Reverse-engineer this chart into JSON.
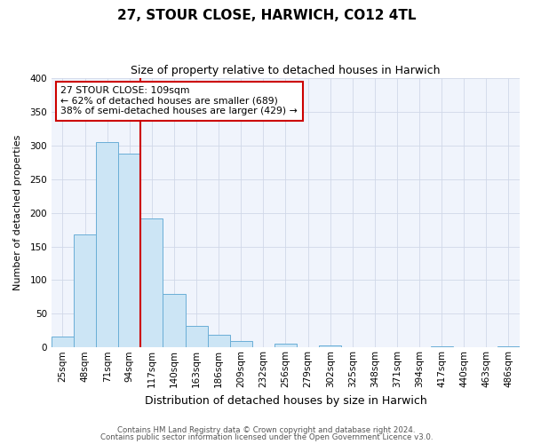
{
  "title": "27, STOUR CLOSE, HARWICH, CO12 4TL",
  "subtitle": "Size of property relative to detached houses in Harwich",
  "xlabel": "Distribution of detached houses by size in Harwich",
  "ylabel": "Number of detached properties",
  "bins": [
    "25sqm",
    "48sqm",
    "71sqm",
    "94sqm",
    "117sqm",
    "140sqm",
    "163sqm",
    "186sqm",
    "209sqm",
    "232sqm",
    "256sqm",
    "279sqm",
    "302sqm",
    "325sqm",
    "348sqm",
    "371sqm",
    "394sqm",
    "417sqm",
    "440sqm",
    "463sqm",
    "486sqm"
  ],
  "values": [
    16,
    168,
    305,
    288,
    191,
    79,
    32,
    19,
    10,
    0,
    5,
    0,
    3,
    0,
    0,
    0,
    0,
    2,
    0,
    0,
    2
  ],
  "bar_color": "#cce5f5",
  "bar_edge_color": "#6aaed6",
  "vline_color": "#cc0000",
  "vline_pos": 3.5,
  "ylim": [
    0,
    400
  ],
  "yticks": [
    0,
    50,
    100,
    150,
    200,
    250,
    300,
    350,
    400
  ],
  "annotation_text": "27 STOUR CLOSE: 109sqm\n← 62% of detached houses are smaller (689)\n38% of semi-detached houses are larger (429) →",
  "annotation_box_color": "#ffffff",
  "annotation_box_edge_color": "#cc0000",
  "footer_line1": "Contains HM Land Registry data © Crown copyright and database right 2024.",
  "footer_line2": "Contains public sector information licensed under the Open Government Licence v3.0.",
  "bg_color": "#ffffff",
  "plot_bg_color": "#f0f4fc",
  "grid_color": "#d0d8e8",
  "title_fontsize": 11,
  "subtitle_fontsize": 9,
  "ylabel_fontsize": 8,
  "xlabel_fontsize": 9,
  "tick_fontsize": 7.5
}
